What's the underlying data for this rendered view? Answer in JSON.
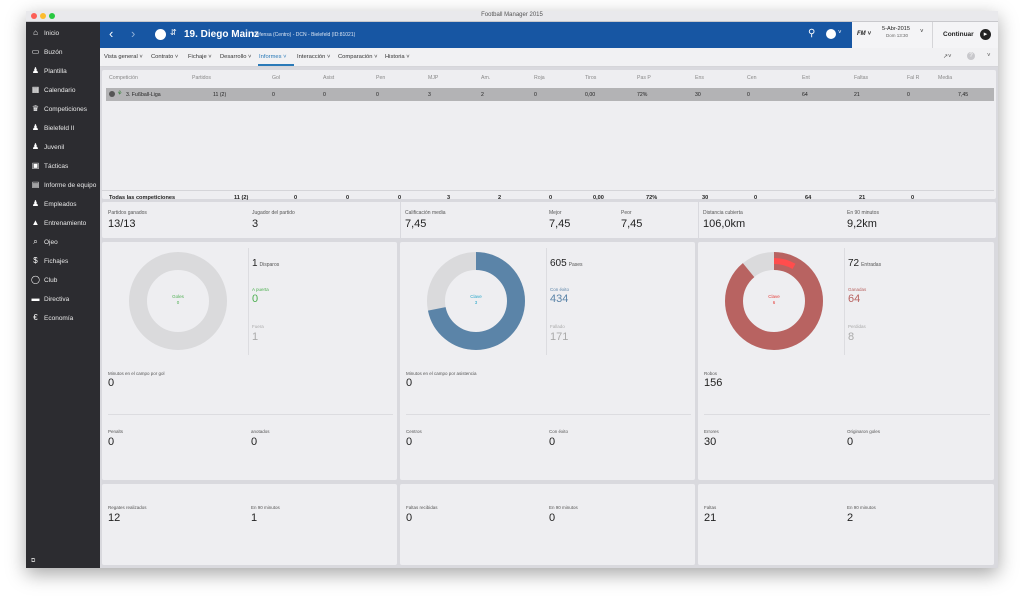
{
  "window": {
    "title": "Football Manager 2015"
  },
  "sidebar": {
    "items": [
      {
        "label": "Inicio",
        "icon": "home-icon",
        "glyph": "⌂"
      },
      {
        "label": "Buzón",
        "icon": "inbox-icon",
        "glyph": "▭"
      },
      {
        "label": "Plantilla",
        "icon": "squad-icon",
        "glyph": "♟"
      },
      {
        "label": "Calendario",
        "icon": "calendar-icon",
        "glyph": "▦"
      },
      {
        "label": "Competiciones",
        "icon": "trophy-icon",
        "glyph": "♛"
      },
      {
        "label": "Bielefeld II",
        "icon": "team-icon",
        "glyph": "♟"
      },
      {
        "label": "Juvenil",
        "icon": "youth-icon",
        "glyph": "♟"
      },
      {
        "label": "Tácticas",
        "icon": "tactics-icon",
        "glyph": "▣"
      },
      {
        "label": "Informe de equipo",
        "icon": "report-icon",
        "glyph": "▤"
      },
      {
        "label": "Empleados",
        "icon": "staff-icon",
        "glyph": "♟"
      },
      {
        "label": "Entrenamiento",
        "icon": "training-icon",
        "glyph": "▲"
      },
      {
        "label": "Ojeo",
        "icon": "scouting-icon",
        "glyph": "⌕"
      },
      {
        "label": "Fichajes",
        "icon": "transfers-icon",
        "glyph": "$"
      },
      {
        "label": "Club",
        "icon": "club-icon",
        "glyph": "◯"
      },
      {
        "label": "Directiva",
        "icon": "board-icon",
        "glyph": "▬"
      },
      {
        "label": "Economía",
        "icon": "finance-icon",
        "glyph": "€"
      }
    ],
    "footer": "⧉"
  },
  "header": {
    "number_name": "19. Diego Mainz",
    "subtitle": "Defensa (Centro) - DCN - Bielefeld (ID:81021)",
    "date": "5-Abr-2015",
    "time": "Dom 13:30",
    "continue_label": "Continuar",
    "fm_label": "FM"
  },
  "tabs": [
    {
      "label": "Vista general ˅"
    },
    {
      "label": "Contrato ˅"
    },
    {
      "label": "Fichaje ˅"
    },
    {
      "label": "Desarrollo ˅"
    },
    {
      "label": "Informes ˅"
    },
    {
      "label": "Interacción ˅"
    },
    {
      "label": "Comparación ˅"
    },
    {
      "label": "Historia ˅"
    }
  ],
  "table": {
    "headers": [
      "Competición",
      "Partidos",
      "Gol",
      "Asist",
      "Pen",
      "MJP",
      "Am.",
      "Roja",
      "Tiros",
      "Pas P",
      "Ens",
      "Cen",
      "Ent",
      "Faltas",
      "Fal R",
      "Media"
    ],
    "row": [
      "3. Fußball-Liga",
      "11 (2)",
      "0",
      "0",
      "0",
      "3",
      "2",
      "0",
      "0,00",
      "72%",
      "30",
      "0",
      "64",
      "21",
      "0",
      "7,45"
    ],
    "totals": [
      "Todas las competiciones",
      "11 (2)",
      "0",
      "0",
      "0",
      "3",
      "2",
      "0",
      "0,00",
      "72%",
      "30",
      "0",
      "64",
      "21",
      "0"
    ]
  },
  "summary": {
    "won_label": "Partidos ganados",
    "won": "13/13",
    "potm_label": "Jugador del partido",
    "potm": "3",
    "avg_label": "Calificación media",
    "avg": "7,45",
    "best_label": "Mejor",
    "best": "7,45",
    "worst_label": "Peor",
    "worst": "7,45",
    "dist_label": "Distancia cubierta",
    "dist": "106,0km",
    "dist90_label": "En 90 minutos",
    "dist90": "9,2km"
  },
  "shots": {
    "donut_label": "Goles",
    "donut_value": "0",
    "total": "1",
    "total_label": "Disparos",
    "on_label": "A puerta",
    "on": "0",
    "off_label": "Fuera",
    "off": "1",
    "mins_label": "Minutos en el campo por gol",
    "mins": "0",
    "pen_label": "Penalts",
    "pen": "0",
    "pen_scored_label": "anotados",
    "pen_scored": "0",
    "dribbles_label": "Regates realizados",
    "dribbles": "12",
    "dribbles90_label": "En 90 minutos",
    "dribbles90": "1"
  },
  "passes": {
    "donut_label": "Clave",
    "donut_value": "3",
    "total": "605",
    "total_label": "Pases",
    "ok_label": "Con éxito",
    "ok": "434",
    "fail_label": "Fallado",
    "fail": "171",
    "mins_label": "Minutos en el campo por asistencia",
    "mins": "0",
    "cross_label": "Centros",
    "cross": "0",
    "cross_ok_label": "Con éxito",
    "cross_ok": "0",
    "fouled_label": "Faltas recibidas",
    "fouled": "0",
    "fouled90_label": "En 90 minutos",
    "fouled90": "0"
  },
  "tackles": {
    "donut_label": "Clave",
    "donut_value": "6",
    "total": "72",
    "total_label": "Entradas",
    "won_label": "Ganadas",
    "won": "64",
    "lost_label": "Perdidas",
    "lost": "8",
    "steals_label": "Robos",
    "steals": "156",
    "errors_label": "Errores",
    "errors": "30",
    "errgoal_label": "Originaron goles",
    "errgoal": "0",
    "fouls_label": "Faltas",
    "fouls": "21",
    "fouls90_label": "En 90 minutos",
    "fouls90": "2"
  },
  "colors": {
    "header": "#1756a3",
    "pass_fill": "#5b84a8",
    "tackle_fill": "#b86361",
    "goal_green": "#4caf50"
  }
}
